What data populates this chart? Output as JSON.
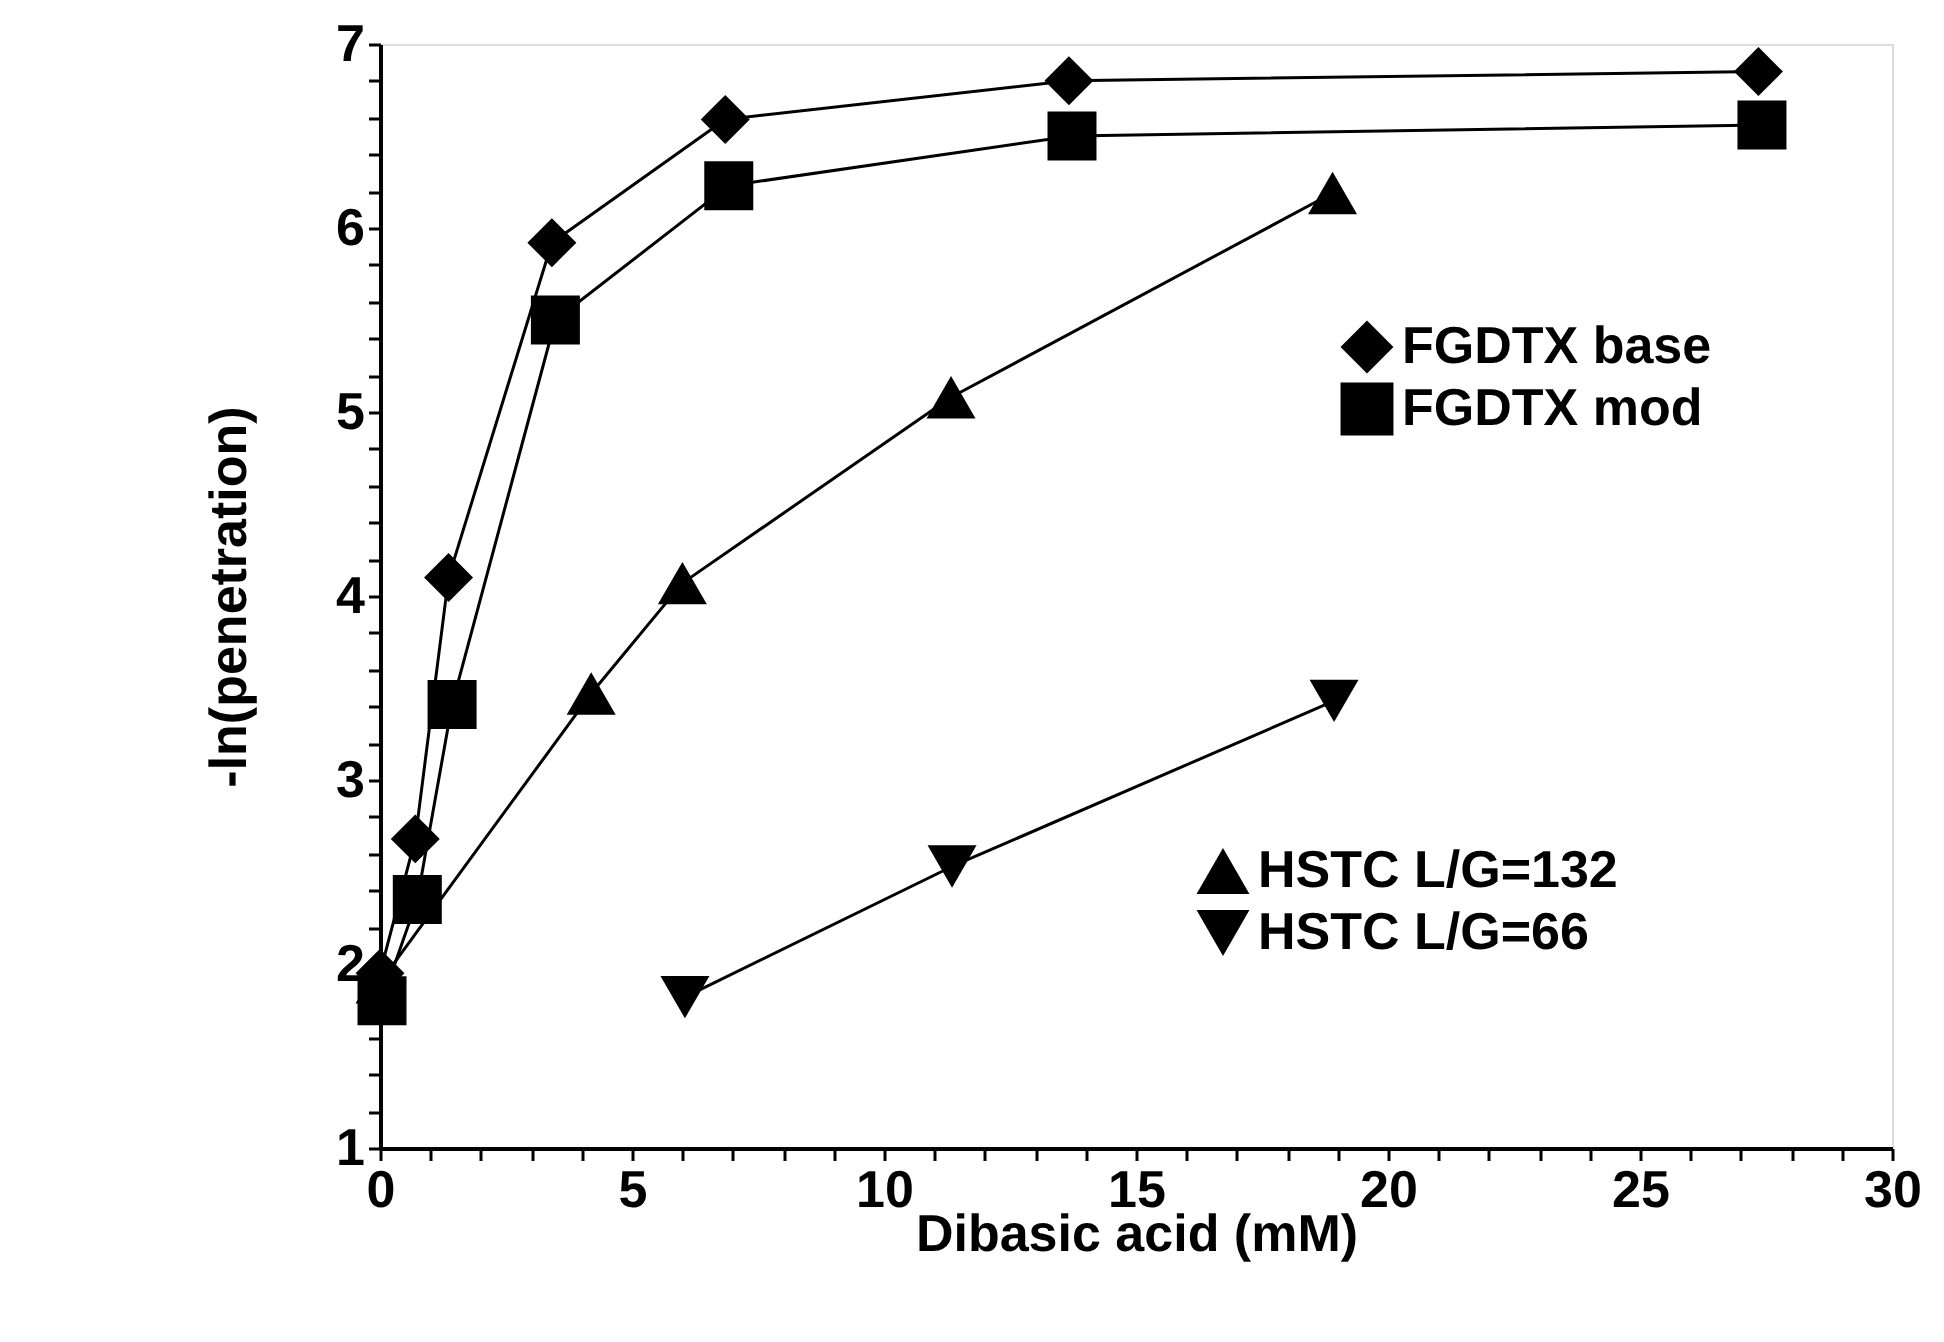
{
  "chart_data": {
    "type": "line",
    "xlabel": "Dibasic acid (mM)",
    "ylabel": "-ln(penetration)",
    "xlim": [
      0,
      30
    ],
    "ylim": [
      1,
      7
    ],
    "xticks": [
      0,
      {
        "value": 1,
        "label": null
      },
      {
        "value": 2,
        "label": null
      },
      {
        "value": 3,
        "label": null
      },
      {
        "value": 4,
        "label": null
      },
      5,
      {
        "value": 6,
        "label": null
      },
      {
        "value": 7,
        "label": null
      },
      {
        "value": 8,
        "label": null
      },
      {
        "value": 9,
        "label": null
      },
      10,
      {
        "value": 11,
        "label": null
      },
      {
        "value": 12,
        "label": null
      },
      {
        "value": 13,
        "label": null
      },
      {
        "value": 14,
        "label": null
      },
      15,
      {
        "value": 16,
        "label": null
      },
      {
        "value": 17,
        "label": null
      },
      {
        "value": 18,
        "label": null
      },
      {
        "value": 19,
        "label": null
      },
      20,
      {
        "value": 21,
        "label": null
      },
      {
        "value": 22,
        "label": null
      },
      {
        "value": 23,
        "label": null
      },
      {
        "value": 24,
        "label": null
      },
      25,
      {
        "value": 26,
        "label": null
      },
      {
        "value": 27,
        "label": null
      },
      {
        "value": 28,
        "label": null
      },
      {
        "value": 29,
        "label": null
      },
      30
    ],
    "yticks": [
      1,
      {
        "value": 1.2,
        "label": null
      },
      {
        "value": 1.4,
        "label": null
      },
      {
        "value": 1.6,
        "label": null
      },
      {
        "value": 1.8,
        "label": null
      },
      2,
      {
        "value": 2.2,
        "label": null
      },
      {
        "value": 2.4,
        "label": null
      },
      {
        "value": 2.6,
        "label": null
      },
      {
        "value": 2.8,
        "label": null
      },
      3,
      {
        "value": 3.2,
        "label": null
      },
      {
        "value": 3.4,
        "label": null
      },
      {
        "value": 3.6,
        "label": null
      },
      {
        "value": 3.8,
        "label": null
      },
      4,
      {
        "value": 4.2,
        "label": null
      },
      {
        "value": 4.4,
        "label": null
      },
      {
        "value": 4.6,
        "label": null
      },
      {
        "value": 4.8,
        "label": null
      },
      5,
      {
        "value": 5.2,
        "label": null
      },
      {
        "value": 5.4,
        "label": null
      },
      {
        "value": 5.6,
        "label": null
      },
      {
        "value": 5.8,
        "label": null
      },
      6,
      {
        "value": 6.2,
        "label": null
      },
      {
        "value": 6.4,
        "label": null
      },
      {
        "value": 6.6,
        "label": null
      },
      {
        "value": 6.8,
        "label": null
      },
      7
    ],
    "grid": false,
    "legend": "right",
    "line_style": "solid",
    "series": [
      {
        "name": "FGDTX base",
        "color": "#000000",
        "marker": "diamond",
        "x": [
          0,
          0.7,
          1.36,
          3.41,
          6.85,
          13.67,
          27.35
        ],
        "values": [
          1.95,
          2.68,
          4.1,
          5.92,
          6.59,
          6.8,
          6.85
        ]
      },
      {
        "name": "FGDTX mod",
        "color": "#000000",
        "marker": "square",
        "x": [
          0.04,
          0.74,
          1.43,
          3.48,
          6.92,
          13.73,
          27.42
        ],
        "values": [
          1.8,
          2.35,
          3.41,
          5.5,
          6.23,
          6.5,
          6.56
        ]
      },
      {
        "name": "HSTC L/G=132",
        "color": "#000000",
        "marker": "triangle",
        "x": [
          0,
          4.19,
          6.0,
          11.33,
          18.9
        ],
        "values": [
          1.9,
          3.47,
          4.07,
          5.08,
          6.19
        ]
      },
      {
        "name": "HSTC L/G=66",
        "color": "#000000",
        "marker": "triangle_down",
        "x": [
          6.05,
          11.35,
          18.93
        ],
        "values": [
          1.82,
          2.53,
          3.43
        ]
      }
    ]
  }
}
